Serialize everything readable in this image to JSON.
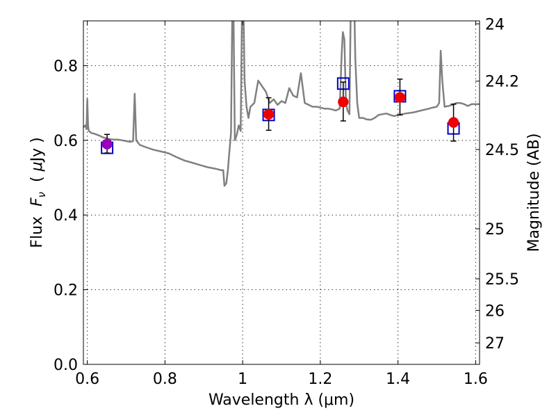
{
  "chart_data": {
    "type": "scatter",
    "title": "",
    "xlabel": "Wavelength  λ (μm)",
    "ylabel": "Flux  F_ν  ( μJy )",
    "ylabel_parts": [
      "Flux  ",
      "F",
      "ν",
      "  ( ",
      "μ",
      "Jy )"
    ],
    "y2label": "Magnitude (AB)",
    "xlim": [
      0.59,
      1.61
    ],
    "ylim": [
      0,
      0.92
    ],
    "grid": true,
    "xticks": [
      0.6,
      0.8,
      1.0,
      1.2,
      1.4,
      1.6
    ],
    "xtick_labels": [
      "0.6",
      "0.8",
      "1",
      "1.2",
      "1.4",
      "1.6"
    ],
    "yticks": [
      0.0,
      0.2,
      0.4,
      0.6,
      0.8
    ],
    "ytick_labels": [
      "0.0",
      "0.2",
      "0.4",
      "0.6",
      "0.8"
    ],
    "y2ticks": [
      24,
      24.2,
      24.5,
      25,
      25.5,
      26,
      27
    ],
    "y2tick_labels": [
      "24",
      "24.2",
      "24.5",
      "25",
      "25.5",
      "26",
      "27"
    ],
    "series": [
      {
        "kind": "line",
        "color": "#808080",
        "x": [
          0.59,
          0.595,
          0.598,
          0.6,
          0.602,
          0.604,
          0.61,
          0.62,
          0.63,
          0.64,
          0.65,
          0.66,
          0.67,
          0.68,
          0.69,
          0.7,
          0.71,
          0.718,
          0.722,
          0.726,
          0.735,
          0.75,
          0.77,
          0.79,
          0.81,
          0.83,
          0.85,
          0.87,
          0.89,
          0.91,
          0.93,
          0.945,
          0.95,
          0.953,
          0.958,
          0.962,
          0.965,
          0.97,
          0.975,
          0.98,
          0.985,
          0.99,
          0.995,
          1.0,
          1.005,
          1.01,
          1.015,
          1.02,
          1.03,
          1.04,
          1.05,
          1.06,
          1.07,
          1.08,
          1.09,
          1.1,
          1.11,
          1.12,
          1.13,
          1.14,
          1.15,
          1.16,
          1.17,
          1.18,
          1.19,
          1.2,
          1.21,
          1.22,
          1.23,
          1.24,
          1.25,
          1.255,
          1.258,
          1.262,
          1.266,
          1.27,
          1.275,
          1.28,
          1.285,
          1.29,
          1.295,
          1.3,
          1.31,
          1.32,
          1.33,
          1.34,
          1.35,
          1.36,
          1.37,
          1.38,
          1.39,
          1.4,
          1.42,
          1.44,
          1.46,
          1.48,
          1.49,
          1.5,
          1.506,
          1.51,
          1.514,
          1.52,
          1.53,
          1.54,
          1.55,
          1.56,
          1.57,
          1.58,
          1.59,
          1.6,
          1.61
        ],
        "y": [
          0.635,
          0.64,
          0.63,
          0.71,
          0.64,
          0.625,
          0.62,
          0.617,
          0.613,
          0.608,
          0.605,
          0.603,
          0.602,
          0.602,
          0.6,
          0.598,
          0.596,
          0.598,
          0.725,
          0.6,
          0.588,
          0.582,
          0.575,
          0.57,
          0.565,
          0.555,
          0.546,
          0.54,
          0.534,
          0.528,
          0.524,
          0.52,
          0.52,
          0.478,
          0.485,
          0.52,
          0.56,
          0.62,
          1.1,
          0.6,
          0.615,
          0.64,
          0.625,
          1.1,
          0.76,
          0.69,
          0.66,
          0.69,
          0.7,
          0.76,
          0.745,
          0.73,
          0.7,
          0.71,
          0.695,
          0.705,
          0.7,
          0.74,
          0.72,
          0.715,
          0.78,
          0.7,
          0.695,
          0.69,
          0.69,
          0.688,
          0.685,
          0.685,
          0.683,
          0.68,
          0.685,
          0.83,
          0.89,
          0.87,
          0.7,
          0.68,
          0.67,
          1.1,
          1.1,
          0.82,
          0.7,
          0.66,
          0.66,
          0.656,
          0.655,
          0.66,
          0.668,
          0.67,
          0.672,
          0.668,
          0.665,
          0.668,
          0.672,
          0.675,
          0.68,
          0.685,
          0.688,
          0.69,
          0.7,
          0.84,
          0.76,
          0.69,
          0.692,
          0.695,
          0.7,
          0.7,
          0.697,
          0.692,
          0.697,
          0.697,
          0.697
        ]
      },
      {
        "kind": "squares",
        "color": "#0000cc",
        "x": [
          0.651,
          1.067,
          1.259,
          1.405,
          1.543
        ],
        "y": [
          0.58,
          0.668,
          0.752,
          0.718,
          0.632
        ]
      },
      {
        "kind": "points",
        "color": "#ee0000",
        "x": [
          1.067,
          1.259,
          1.405,
          1.543
        ],
        "y": [
          0.67,
          0.703,
          0.715,
          0.648
        ],
        "yerr_low": [
          0.627,
          0.652,
          0.668,
          0.598
        ],
        "yerr_high": [
          0.714,
          0.756,
          0.764,
          0.697
        ]
      },
      {
        "kind": "points",
        "color": "#9900bb",
        "x": [
          0.651
        ],
        "y": [
          0.59
        ],
        "yerr_low": [
          0.566
        ],
        "yerr_high": [
          0.616
        ]
      }
    ]
  }
}
